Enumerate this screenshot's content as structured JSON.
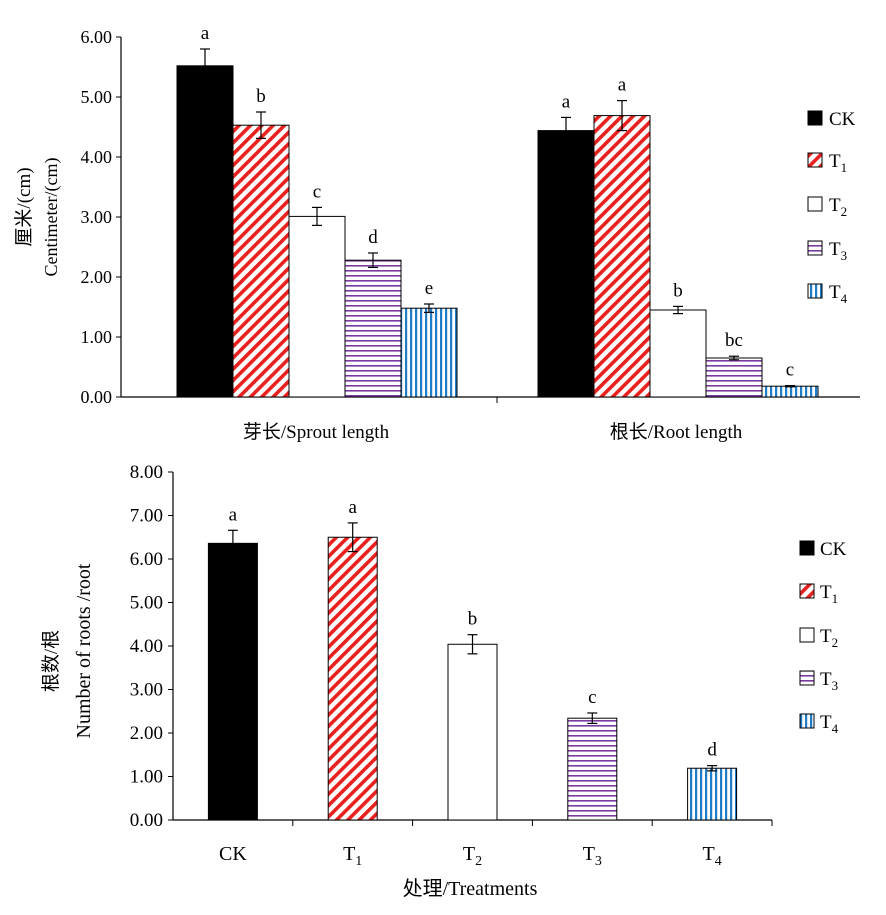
{
  "chart_data": [
    {
      "type": "bar",
      "title": "",
      "ylabel_cn": "厘米/(cm)",
      "ylabel_en": "Centimeter/(cm)",
      "categories": [
        "芽长/Sprout length",
        "根长/Root length"
      ],
      "ylim": [
        0,
        6
      ],
      "yticks": [
        "0.00",
        "1.00",
        "2.00",
        "3.00",
        "4.00",
        "5.00",
        "6.00"
      ],
      "series": [
        {
          "name": "CK",
          "values": [
            5.52,
            4.44
          ],
          "errors": [
            0.28,
            0.22
          ],
          "letters": [
            "a",
            "a"
          ]
        },
        {
          "name": "T1",
          "values": [
            4.53,
            4.69
          ],
          "errors": [
            0.22,
            0.25
          ],
          "letters": [
            "b",
            "a"
          ]
        },
        {
          "name": "T2",
          "values": [
            3.01,
            1.45
          ],
          "errors": [
            0.15,
            0.06
          ],
          "letters": [
            "c",
            "b"
          ]
        },
        {
          "name": "T3",
          "values": [
            2.28,
            0.65
          ],
          "errors": [
            0.12,
            0.03
          ],
          "letters": [
            "d",
            "bc"
          ]
        },
        {
          "name": "T4",
          "values": [
            1.48,
            0.18
          ],
          "errors": [
            0.07,
            0.01
          ],
          "letters": [
            "e",
            "c"
          ]
        }
      ],
      "legend_position": "right",
      "grid": false
    },
    {
      "type": "bar",
      "title": "",
      "ylabel_cn": "根数/根",
      "ylabel_en": "Number of roots /root",
      "xlabel": "处理/Treatments",
      "categories": [
        "CK",
        "T1",
        "T2",
        "T3",
        "T4"
      ],
      "ylim": [
        0,
        8
      ],
      "yticks": [
        "0.00",
        "1.00",
        "2.00",
        "3.00",
        "4.00",
        "5.00",
        "6.00",
        "7.00",
        "8.00"
      ],
      "values": [
        6.36,
        6.5,
        4.04,
        2.34,
        1.19
      ],
      "errors": [
        0.3,
        0.33,
        0.22,
        0.12,
        0.06
      ],
      "letters": [
        "a",
        "a",
        "b",
        "c",
        "d"
      ],
      "legend": [
        "CK",
        "T1",
        "T2",
        "T3",
        "T4"
      ],
      "legend_position": "right",
      "grid": false
    }
  ]
}
